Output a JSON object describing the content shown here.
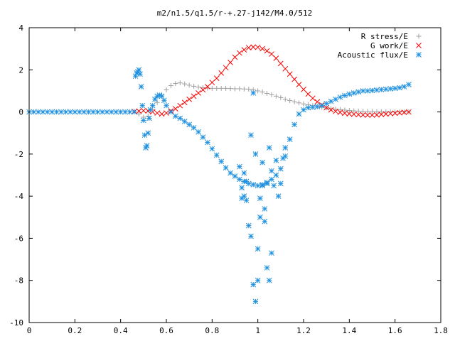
{
  "chart_data": {
    "type": "scatter",
    "title": "m2/n1.5/q1.5/r-+.27-j142/M4.0/512",
    "xlabel": "",
    "ylabel": "",
    "xlim": [
      0,
      1.8
    ],
    "ylim": [
      -10,
      4
    ],
    "xticks": [
      "0",
      "0.2",
      "0.4",
      "0.6",
      "0.8",
      "1",
      "1.2",
      "1.4",
      "1.6",
      "1.8"
    ],
    "yticks": [
      "4",
      "2",
      "0",
      "-2",
      "-4",
      "-6",
      "-8",
      "-10"
    ],
    "legend_position": "top-right",
    "grid": false,
    "series": [
      {
        "name": "R stress/E",
        "marker": "plus",
        "color": "#a0a0a0",
        "x": [
          0.46,
          0.48,
          0.5,
          0.52,
          0.54,
          0.56,
          0.58,
          0.6,
          0.62,
          0.64,
          0.66,
          0.68,
          0.7,
          0.72,
          0.74,
          0.76,
          0.78,
          0.8,
          0.82,
          0.84,
          0.86,
          0.88,
          0.9,
          0.92,
          0.94,
          0.96,
          0.98,
          1.0,
          1.02,
          1.04,
          1.06,
          1.08,
          1.1,
          1.12,
          1.14,
          1.16,
          1.18,
          1.2,
          1.22,
          1.24,
          1.26,
          1.28,
          1.3,
          1.32,
          1.34,
          1.36,
          1.38,
          1.4,
          1.42,
          1.44,
          1.46,
          1.48,
          1.5,
          1.52,
          1.54,
          1.56,
          1.58,
          1.6,
          1.62,
          1.64,
          1.66
        ],
        "y": [
          0.0,
          -0.1,
          -0.25,
          -0.2,
          0.1,
          0.45,
          0.8,
          1.05,
          1.25,
          1.35,
          1.38,
          1.33,
          1.27,
          1.22,
          1.18,
          1.15,
          1.13,
          1.12,
          1.12,
          1.12,
          1.12,
          1.11,
          1.1,
          1.1,
          1.09,
          1.08,
          1.05,
          1.0,
          0.95,
          0.88,
          0.82,
          0.75,
          0.68,
          0.6,
          0.54,
          0.48,
          0.43,
          0.38,
          0.34,
          0.3,
          0.26,
          0.22,
          0.19,
          0.16,
          0.13,
          0.11,
          0.09,
          0.07,
          0.05,
          0.04,
          0.03,
          0.02,
          0.02,
          0.01,
          0.01,
          0.0,
          0.0,
          0.0,
          0.0,
          0.0,
          0.0
        ]
      },
      {
        "name": "G work/E",
        "marker": "cross",
        "color": "#ff0000",
        "x": [
          0.46,
          0.48,
          0.5,
          0.52,
          0.54,
          0.56,
          0.58,
          0.6,
          0.62,
          0.64,
          0.66,
          0.68,
          0.7,
          0.72,
          0.74,
          0.76,
          0.78,
          0.8,
          0.82,
          0.84,
          0.86,
          0.88,
          0.9,
          0.92,
          0.94,
          0.96,
          0.98,
          1.0,
          1.02,
          1.04,
          1.06,
          1.08,
          1.1,
          1.12,
          1.14,
          1.16,
          1.18,
          1.2,
          1.22,
          1.24,
          1.26,
          1.28,
          1.3,
          1.32,
          1.34,
          1.36,
          1.38,
          1.4,
          1.42,
          1.44,
          1.46,
          1.48,
          1.5,
          1.52,
          1.54,
          1.56,
          1.58,
          1.6,
          1.62,
          1.64,
          1.66
        ],
        "y": [
          0.02,
          0.04,
          0.06,
          0.05,
          0.0,
          -0.05,
          -0.1,
          -0.05,
          0.05,
          0.15,
          0.3,
          0.45,
          0.6,
          0.75,
          0.9,
          1.05,
          1.2,
          1.4,
          1.6,
          1.85,
          2.1,
          2.35,
          2.6,
          2.8,
          2.95,
          3.05,
          3.08,
          3.07,
          3.0,
          2.9,
          2.75,
          2.55,
          2.3,
          2.05,
          1.8,
          1.55,
          1.3,
          1.07,
          0.85,
          0.65,
          0.48,
          0.33,
          0.2,
          0.1,
          0.03,
          -0.02,
          -0.06,
          -0.09,
          -0.11,
          -0.13,
          -0.14,
          -0.15,
          -0.15,
          -0.14,
          -0.12,
          -0.1,
          -0.08,
          -0.06,
          -0.04,
          -0.02,
          0.0
        ]
      },
      {
        "name": "Acoustic flux/E",
        "marker": "star",
        "color": "#1e90e0",
        "x": [
          0.0,
          0.02,
          0.04,
          0.06,
          0.08,
          0.1,
          0.12,
          0.14,
          0.16,
          0.18,
          0.2,
          0.22,
          0.24,
          0.26,
          0.28,
          0.3,
          0.32,
          0.34,
          0.36,
          0.38,
          0.4,
          0.42,
          0.44,
          0.46,
          0.465,
          0.47,
          0.475,
          0.48,
          0.485,
          0.49,
          0.495,
          0.5,
          0.505,
          0.51,
          0.515,
          0.52,
          0.525,
          0.53,
          0.54,
          0.55,
          0.56,
          0.57,
          0.58,
          0.59,
          0.6,
          0.62,
          0.64,
          0.66,
          0.68,
          0.7,
          0.72,
          0.74,
          0.76,
          0.78,
          0.8,
          0.82,
          0.84,
          0.86,
          0.88,
          0.9,
          0.92,
          0.94,
          0.96,
          0.98,
          1.0,
          1.02,
          1.04,
          1.06,
          1.08,
          1.1,
          1.12,
          1.14,
          1.16,
          1.18,
          1.2,
          1.22,
          1.24,
          1.26,
          1.28,
          1.3,
          1.32,
          1.34,
          1.36,
          1.38,
          1.4,
          1.42,
          1.44,
          1.46,
          1.48,
          1.5,
          1.52,
          1.54,
          1.56,
          1.58,
          1.6,
          1.62,
          1.64,
          1.66,
          0.92,
          0.93,
          0.93,
          0.94,
          0.94,
          0.95,
          0.95,
          0.96,
          0.97,
          0.97,
          0.98,
          0.98,
          0.99,
          0.99,
          1.0,
          1.0,
          1.01,
          1.01,
          1.02,
          1.02,
          1.03,
          1.03,
          1.04,
          1.04,
          1.05,
          1.05,
          1.06,
          1.06,
          1.07,
          1.08,
          1.09,
          1.1,
          1.11,
          1.12
        ],
        "y": [
          0,
          0,
          0,
          0,
          0,
          0,
          0,
          0,
          0,
          0,
          0,
          0,
          0,
          0,
          0,
          0,
          0,
          0,
          0,
          0,
          0,
          0,
          0,
          0,
          1.7,
          1.85,
          1.9,
          2.0,
          1.8,
          1.2,
          0.3,
          -0.4,
          -1.1,
          -1.7,
          -1.6,
          -1.0,
          -0.3,
          0.1,
          0.3,
          0.6,
          0.75,
          0.8,
          0.75,
          0.55,
          0.3,
          0.0,
          -0.2,
          -0.3,
          -0.45,
          -0.6,
          -0.75,
          -0.95,
          -1.2,
          -1.45,
          -1.75,
          -2.05,
          -2.35,
          -2.65,
          -2.9,
          -3.05,
          -3.2,
          -3.3,
          -3.4,
          -3.45,
          -3.5,
          -3.45,
          -3.35,
          -3.2,
          -3.0,
          -2.7,
          -2.1,
          -1.3,
          -0.6,
          -0.1,
          0.1,
          0.2,
          0.22,
          0.25,
          0.3,
          0.4,
          0.5,
          0.6,
          0.7,
          0.78,
          0.85,
          0.9,
          0.95,
          1.0,
          1.0,
          1.02,
          1.04,
          1.06,
          1.08,
          1.1,
          1.12,
          1.15,
          1.2,
          1.3,
          -2.6,
          -3.6,
          -4.1,
          -2.9,
          -4.0,
          -3.3,
          -4.2,
          -5.4,
          -1.1,
          -5.9,
          0.9,
          -8.2,
          -2.0,
          -9.0,
          -8.0,
          -6.5,
          -5.0,
          -4.1,
          -3.5,
          -2.4,
          -5.2,
          -4.6,
          -3.4,
          -7.4,
          -1.7,
          -8.0,
          -6.7,
          -2.8,
          -3.5,
          -2.3,
          -4.0,
          -3.4,
          -2.2,
          -1.7
        ]
      }
    ]
  }
}
